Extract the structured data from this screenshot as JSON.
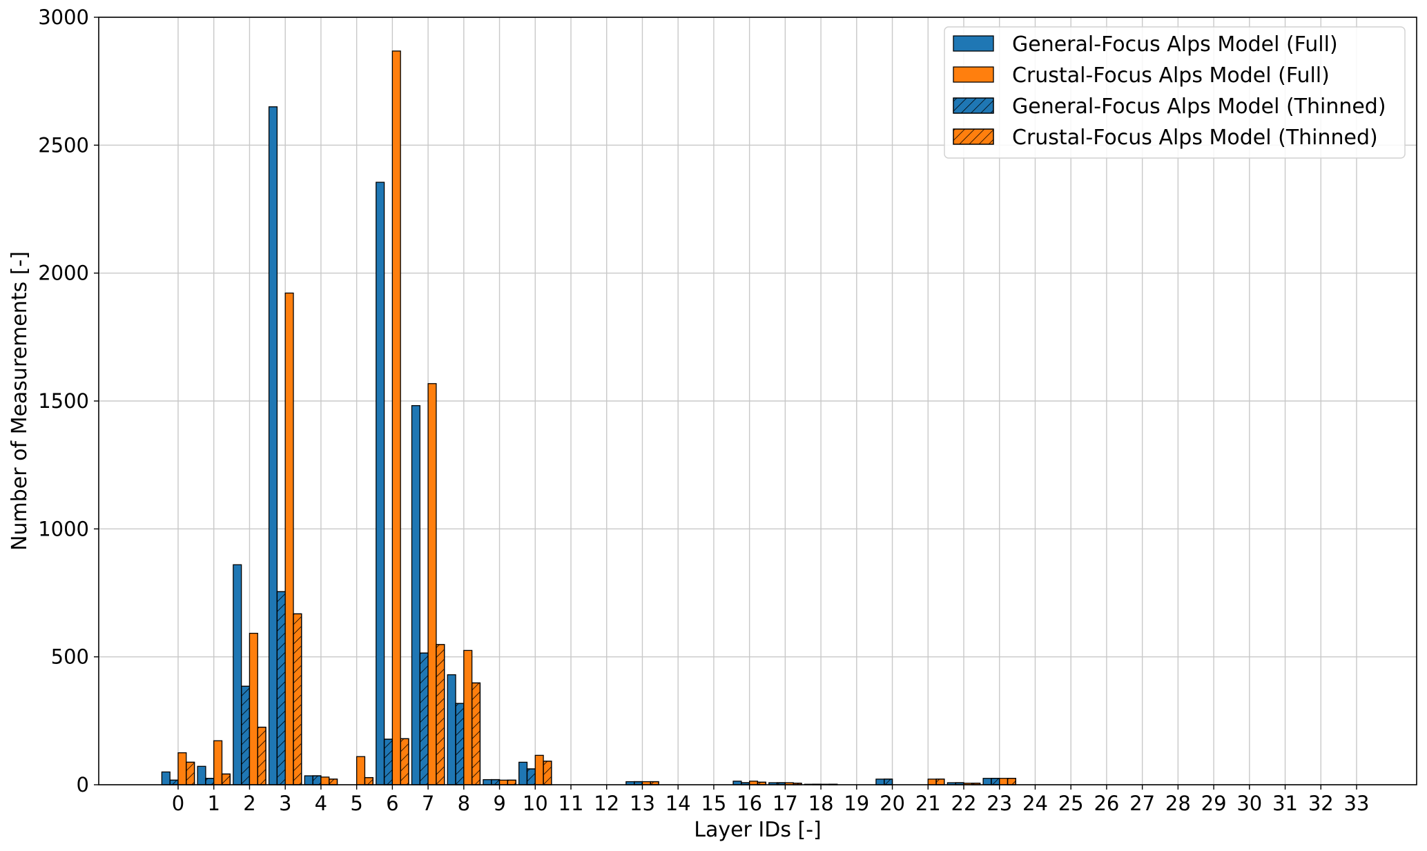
{
  "colors": {
    "general": "#1f77b4",
    "crustal": "#ff7f0e",
    "grid": "#c8c8c8",
    "edge": "#000000"
  },
  "chart_data": {
    "type": "bar",
    "xlabel": "Layer IDs [-]",
    "ylabel": "Number of Measurements [-]",
    "ylim": [
      0,
      3000
    ],
    "yticks": [
      0,
      500,
      1000,
      1500,
      2000,
      2500,
      3000
    ],
    "grid": true,
    "legend_position": "top-right",
    "categories": [
      "0",
      "1",
      "2",
      "3",
      "4",
      "5",
      "6",
      "7",
      "8",
      "9",
      "10",
      "11",
      "12",
      "13",
      "14",
      "15",
      "16",
      "17",
      "18",
      "19",
      "20",
      "21",
      "22",
      "23",
      "24",
      "25",
      "26",
      "27",
      "28",
      "29",
      "30",
      "31",
      "32",
      "33"
    ],
    "series": [
      {
        "name": "General-Focus Alps Model (Full)",
        "color": "#1f77b4",
        "hatch": false,
        "values": [
          50,
          72,
          860,
          2650,
          35,
          0,
          2355,
          1482,
          430,
          20,
          88,
          0,
          0,
          12,
          0,
          0,
          14,
          8,
          2,
          0,
          22,
          0,
          8,
          25,
          0,
          0,
          0,
          0,
          0,
          0,
          0,
          0,
          0,
          0
        ]
      },
      {
        "name": "General-Focus Alps Model (Thinned)",
        "color": "#1f77b4",
        "hatch": true,
        "values": [
          18,
          25,
          385,
          755,
          35,
          0,
          178,
          515,
          318,
          20,
          62,
          0,
          0,
          12,
          0,
          0,
          8,
          8,
          2,
          0,
          22,
          0,
          8,
          25,
          0,
          0,
          0,
          0,
          0,
          0,
          0,
          0,
          0,
          0
        ]
      },
      {
        "name": "Crustal-Focus Alps Model (Full)",
        "color": "#ff7f0e",
        "hatch": false,
        "values": [
          125,
          172,
          592,
          1922,
          30,
          110,
          2868,
          1568,
          525,
          18,
          115,
          0,
          0,
          12,
          0,
          0,
          14,
          8,
          2,
          0,
          0,
          22,
          6,
          25,
          0,
          0,
          0,
          0,
          0,
          0,
          0,
          0,
          0,
          0
        ]
      },
      {
        "name": "Crustal-Focus Alps Model (Thinned)",
        "color": "#ff7f0e",
        "hatch": true,
        "values": [
          88,
          42,
          225,
          668,
          22,
          28,
          180,
          548,
          398,
          18,
          92,
          0,
          0,
          12,
          0,
          0,
          10,
          6,
          2,
          0,
          0,
          22,
          6,
          25,
          0,
          0,
          0,
          0,
          0,
          0,
          0,
          0,
          0,
          0
        ]
      }
    ],
    "legend_order": [
      0,
      2,
      1,
      3
    ]
  }
}
